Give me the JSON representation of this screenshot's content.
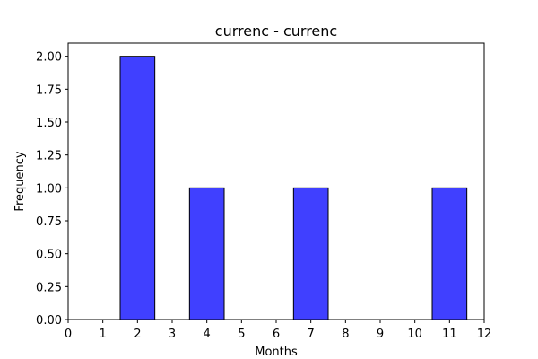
{
  "chart_data": {
    "type": "bar",
    "title": "currenc - currenc",
    "xlabel": "Months",
    "ylabel": "Frequency",
    "x_ticks": [
      "0",
      "1",
      "2",
      "3",
      "4",
      "5",
      "6",
      "7",
      "8",
      "9",
      "10",
      "11",
      "12"
    ],
    "y_ticks": [
      "0.00",
      "0.25",
      "0.50",
      "0.75",
      "1.00",
      "1.25",
      "1.50",
      "1.75",
      "2.00"
    ],
    "xlim": [
      0,
      12
    ],
    "ylim": [
      0,
      2.1
    ],
    "bin_width": 1,
    "bins": [
      {
        "center": 2,
        "value": 2
      },
      {
        "center": 4,
        "value": 1
      },
      {
        "center": 7,
        "value": 1
      },
      {
        "center": 11,
        "value": 1
      }
    ],
    "bar_color": "#4040ff",
    "bar_edge_color": "#000000",
    "grid": false,
    "legend": "none"
  }
}
